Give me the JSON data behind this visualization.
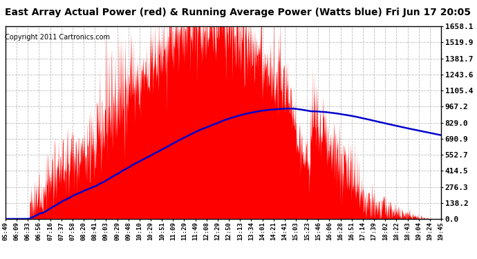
{
  "title": "East Array Actual Power (red) & Running Average Power (Watts blue) Fri Jun 17 20:05",
  "copyright": "Copyright 2011 Cartronics.com",
  "yticks": [
    0.0,
    138.2,
    276.3,
    414.5,
    552.7,
    690.9,
    829.0,
    967.2,
    1105.4,
    1243.6,
    1381.7,
    1519.9,
    1658.1
  ],
  "ymax": 1658.1,
  "ymin": 0.0,
  "xtick_labels": [
    "05:49",
    "06:09",
    "06:33",
    "06:56",
    "07:16",
    "07:37",
    "07:58",
    "08:20",
    "08:41",
    "09:03",
    "09:29",
    "09:48",
    "10:10",
    "10:29",
    "10:51",
    "11:09",
    "11:29",
    "11:49",
    "12:08",
    "12:29",
    "12:50",
    "13:13",
    "13:34",
    "14:01",
    "14:21",
    "14:41",
    "15:03",
    "15:23",
    "15:46",
    "16:06",
    "16:28",
    "16:51",
    "17:14",
    "17:39",
    "18:02",
    "18:22",
    "18:43",
    "19:04",
    "19:24",
    "19:45"
  ],
  "bg_color": "#ffffff",
  "red_color": "#ff0000",
  "blue_color": "#0000cc",
  "grid_color": "#bbbbbb",
  "title_fontsize": 10,
  "copyright_fontsize": 7,
  "ytick_fontsize": 8,
  "xtick_fontsize": 6.5
}
